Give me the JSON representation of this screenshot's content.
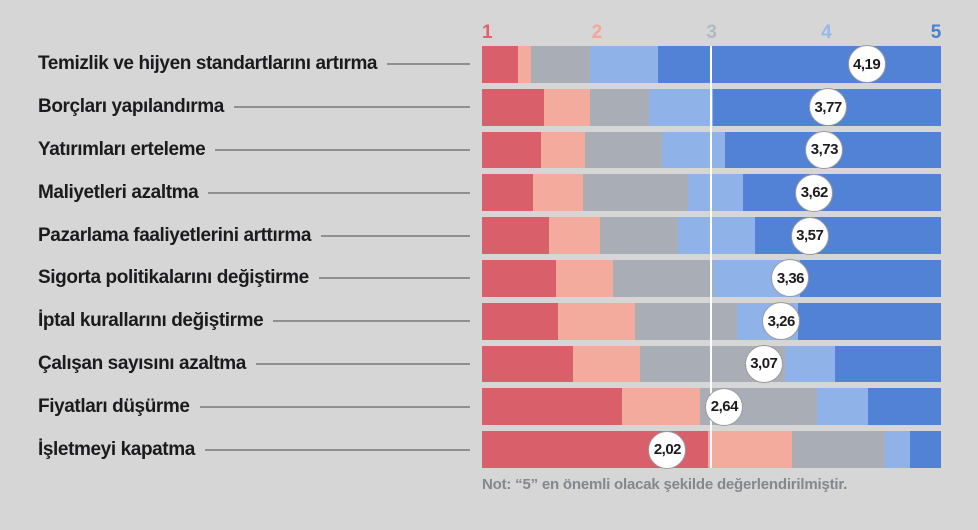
{
  "chart_data": {
    "type": "bar",
    "variant": "horizontal-likert-stacked",
    "title": "",
    "xlabel": "",
    "ylabel": "",
    "scale": {
      "min": 1,
      "max": 5
    },
    "gridline_at": 3,
    "axis_ticks": [
      {
        "label": "1",
        "color": "#e0606b"
      },
      {
        "label": "2",
        "color": "#f2a79a"
      },
      {
        "label": "3",
        "color": "#b3b8c2"
      },
      {
        "label": "4",
        "color": "#96b8ea"
      },
      {
        "label": "5",
        "color": "#4e7ed0"
      }
    ],
    "series_colors_list": [
      "#d95f6b",
      "#f3ab9d",
      "#a8adb6",
      "#8fb3e9",
      "#5282d5"
    ],
    "series_names": [
      "1",
      "2",
      "3",
      "4",
      "5"
    ],
    "rows": [
      {
        "label": "Temizlik ve hijyen standartlarını artırma",
        "mean": 4.19,
        "mean_display": "4,19",
        "segments": [
          7.8,
          2.8,
          12.9,
          14.8,
          61.7
        ]
      },
      {
        "label": "Borçları yapılandırma",
        "mean": 3.77,
        "mean_display": "3,77",
        "segments": [
          13.5,
          10.0,
          12.9,
          13.9,
          49.7
        ]
      },
      {
        "label": "Yatırımları erteleme",
        "mean": 3.73,
        "mean_display": "3,73",
        "segments": [
          12.9,
          9.6,
          16.8,
          13.7,
          47.0
        ]
      },
      {
        "label": "Maliyetleri azaltma",
        "mean": 3.62,
        "mean_display": "3,62",
        "segments": [
          11.1,
          10.9,
          22.9,
          12.0,
          43.1
        ]
      },
      {
        "label": "Pazarlama faaliyetlerini arttırma",
        "mean": 3.57,
        "mean_display": "3,57",
        "segments": [
          14.6,
          11.1,
          17.0,
          16.8,
          40.5
        ]
      },
      {
        "label": "Sigorta politikalarını değiştirme",
        "mean": 3.36,
        "mean_display": "3,36",
        "segments": [
          16.1,
          12.4,
          21.8,
          19.0,
          30.7
        ]
      },
      {
        "label": "İptal kurallarını değiştirme",
        "mean": 3.26,
        "mean_display": "3,26",
        "segments": [
          16.6,
          16.8,
          22.2,
          13.3,
          31.1
        ]
      },
      {
        "label": "Çalışan sayısını azaltma",
        "mean": 3.07,
        "mean_display": "3,07",
        "segments": [
          19.8,
          14.6,
          31.6,
          10.9,
          23.1
        ]
      },
      {
        "label": "Fiyatları düşürme",
        "mean": 2.64,
        "mean_display": "2,64",
        "segments": [
          30.5,
          17.0,
          25.5,
          11.1,
          15.9
        ]
      },
      {
        "label": "İşletmeyi kapatma",
        "mean": 2.02,
        "mean_display": "2,02",
        "segments": [
          49.2,
          18.3,
          20.3,
          5.4,
          6.8
        ]
      }
    ],
    "note": "Not: “5” en önemli olacak şekilde değerlendirilmiştir.",
    "layout": {
      "legend": "none",
      "grid": "single-vertical-midline",
      "background": "#d6d6d6"
    }
  },
  "colors": {
    "background": "#d6d6d6",
    "label_text": "#1b1b1d",
    "leader_line": "#8f8f8f",
    "gridline": "#ffffff",
    "circle_fill": "#ffffff",
    "circle_border": "#9b9b9b",
    "note_text": "#84878e"
  }
}
